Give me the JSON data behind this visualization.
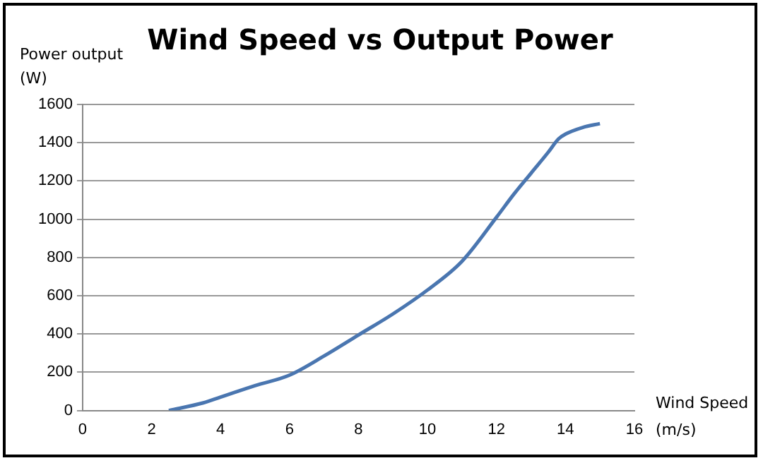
{
  "chart_data": {
    "type": "line",
    "title": "Wind Speed vs Output Power",
    "xlabel": "Wind Speed (m/s)",
    "ylabel": "Power output (W)",
    "x": [
      2.5,
      3.5,
      4,
      5,
      6,
      7,
      8,
      9,
      10,
      11,
      12,
      12.5,
      13,
      13.5,
      13.8,
      14,
      14.5,
      15
    ],
    "series": [
      {
        "color": "#4a76b0",
        "values": [
          0,
          40,
          70,
          130,
          185,
          285,
          395,
          505,
          630,
          780,
          1010,
          1130,
          1240,
          1350,
          1420,
          1445,
          1480,
          1500
        ]
      }
    ],
    "xlim": [
      0,
      16
    ],
    "xticks": [
      0,
      2,
      4,
      6,
      8,
      10,
      12,
      14,
      16
    ],
    "ylim": [
      0,
      1600
    ],
    "yticks": [
      0,
      200,
      400,
      600,
      800,
      1000,
      1200,
      1400,
      1600
    ],
    "grid": "y",
    "legend": false,
    "marker": "none",
    "line_style": "solid"
  }
}
